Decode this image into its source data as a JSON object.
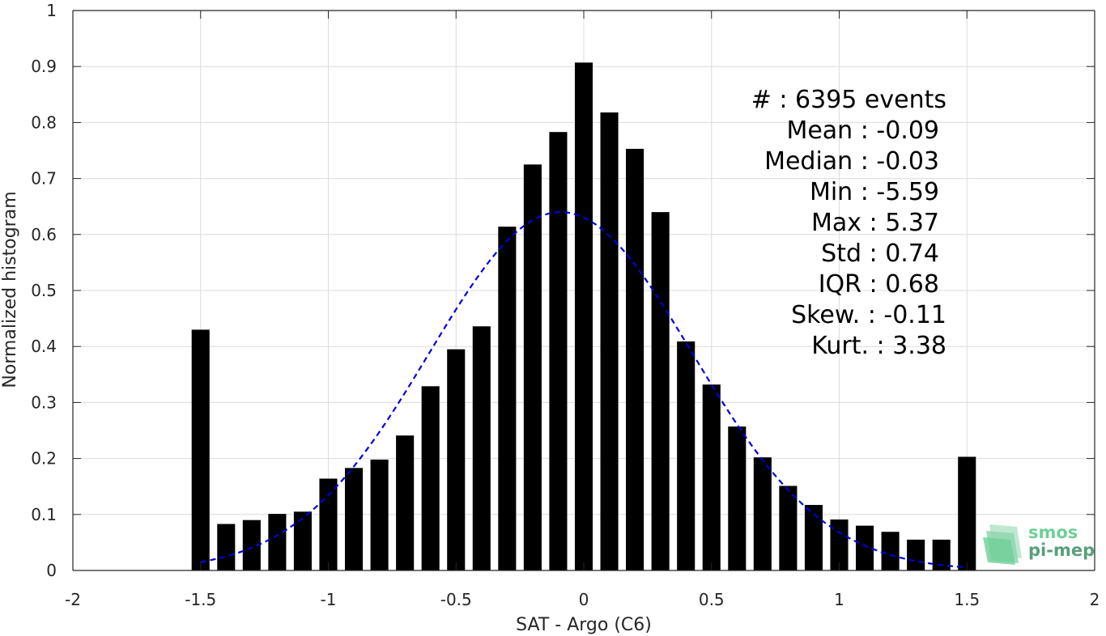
{
  "chart_data": {
    "type": "bar",
    "xlabel": "SAT - Argo (C6)",
    "ylabel": "Normalized histogram",
    "xlim": [
      -2,
      2
    ],
    "ylim": [
      0,
      1
    ],
    "grid": true,
    "x_ticks": [
      -2,
      -1.5,
      -1,
      -0.5,
      0,
      0.5,
      1,
      1.5,
      2
    ],
    "x_tick_labels": [
      "-2",
      "-1.5",
      "-1",
      "-0.5",
      "0",
      "0.5",
      "1",
      "1.5",
      "2"
    ],
    "y_ticks": [
      0,
      0.1,
      0.2,
      0.3,
      0.4,
      0.5,
      0.6,
      0.7,
      0.8,
      0.9,
      1
    ],
    "y_tick_labels": [
      "0",
      "0.1",
      "0.2",
      "0.3",
      "0.4",
      "0.5",
      "0.6",
      "0.7",
      "0.8",
      "0.9",
      "1"
    ],
    "bar_color": "#000000",
    "bar_width": 0.07,
    "bars": [
      {
        "x": -1.5,
        "y": 0.43
      },
      {
        "x": -1.4,
        "y": 0.083
      },
      {
        "x": -1.3,
        "y": 0.09
      },
      {
        "x": -1.2,
        "y": 0.101
      },
      {
        "x": -1.1,
        "y": 0.105
      },
      {
        "x": -1.0,
        "y": 0.164
      },
      {
        "x": -0.9,
        "y": 0.183
      },
      {
        "x": -0.8,
        "y": 0.198
      },
      {
        "x": -0.7,
        "y": 0.241
      },
      {
        "x": -0.6,
        "y": 0.329
      },
      {
        "x": -0.5,
        "y": 0.395
      },
      {
        "x": -0.4,
        "y": 0.436
      },
      {
        "x": -0.3,
        "y": 0.614
      },
      {
        "x": -0.2,
        "y": 0.725
      },
      {
        "x": -0.1,
        "y": 0.783
      },
      {
        "x": 0.0,
        "y": 0.907
      },
      {
        "x": 0.1,
        "y": 0.818
      },
      {
        "x": 0.2,
        "y": 0.753
      },
      {
        "x": 0.3,
        "y": 0.64
      },
      {
        "x": 0.4,
        "y": 0.409
      },
      {
        "x": 0.5,
        "y": 0.332
      },
      {
        "x": 0.6,
        "y": 0.257
      },
      {
        "x": 0.7,
        "y": 0.202
      },
      {
        "x": 0.8,
        "y": 0.151
      },
      {
        "x": 0.9,
        "y": 0.117
      },
      {
        "x": 1.0,
        "y": 0.091
      },
      {
        "x": 1.1,
        "y": 0.08
      },
      {
        "x": 1.2,
        "y": 0.069
      },
      {
        "x": 1.3,
        "y": 0.055
      },
      {
        "x": 1.4,
        "y": 0.055
      },
      {
        "x": 1.5,
        "y": 0.203
      }
    ],
    "fit_curve": {
      "type": "gaussian",
      "style": "dashed",
      "color": "#0000dd",
      "mean": -0.09,
      "std": 0.515,
      "peak": 0.64,
      "x_range": [
        -1.5,
        1.5
      ]
    },
    "stats_lines": [
      "#  : 6395 events",
      "Mean : -0.09",
      "Median : -0.03",
      "Min : -5.59",
      "Max : 5.37",
      "Std : 0.74",
      "IQR : 0.68",
      "Skew. : -0.11",
      "Kurt. : 3.38"
    ],
    "logo": {
      "line1": "smos",
      "line2": "pi-mep",
      "color1": "#6fcf97",
      "color2": "#5a9f7a"
    }
  }
}
